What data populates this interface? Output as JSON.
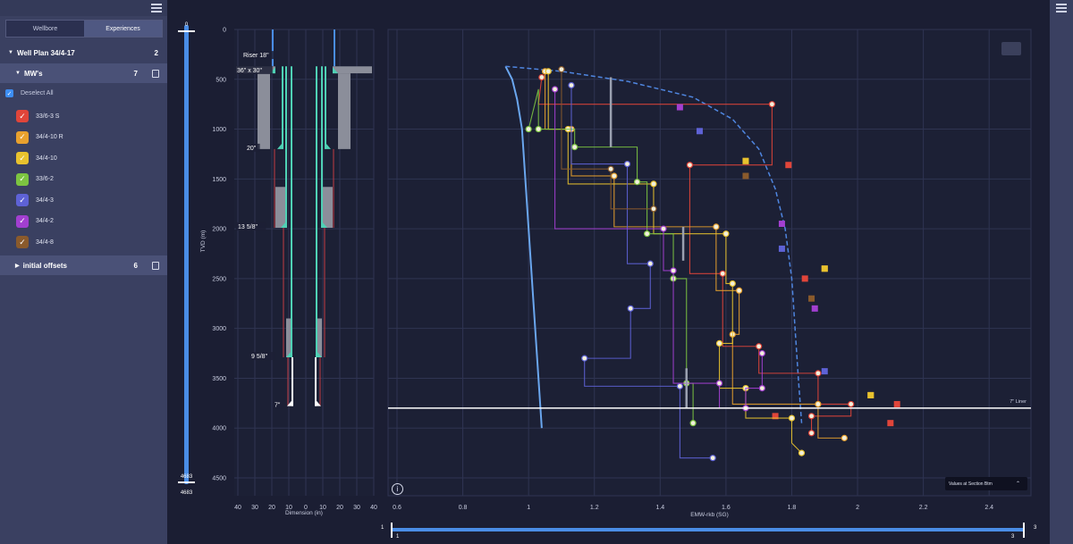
{
  "sidebar": {
    "tabs": [
      {
        "label": "Wellbore",
        "active": false
      },
      {
        "label": "Experiences",
        "active": true
      }
    ],
    "plan": {
      "title": "Well Plan 34/4-17",
      "count": "2"
    },
    "mws": {
      "title": "MW's",
      "count": "7"
    },
    "deselect_label": "Deselect All",
    "items": [
      {
        "label": "33/6-3 S",
        "color": "#e0453a",
        "icon": "check-icon"
      },
      {
        "label": "34/4-10 R",
        "color": "#e8a12e",
        "icon": "check-icon"
      },
      {
        "label": "34/4-10",
        "color": "#e8c22e",
        "icon": "check-icon"
      },
      {
        "label": "33/6-2",
        "color": "#7cc441",
        "icon": "check-icon"
      },
      {
        "label": "34/4-3",
        "color": "#5e62d6",
        "icon": "check-icon"
      },
      {
        "label": "34/4-2",
        "color": "#a23fd0",
        "icon": "check-icon"
      },
      {
        "label": "34/4-8",
        "color": "#8a5a2c",
        "icon": "check-icon"
      }
    ],
    "offsets": {
      "title": "initial offsets",
      "count": "6"
    }
  },
  "depth_scale": {
    "top": "0",
    "bottom": "4683",
    "bottom_repeat": "4683"
  },
  "section_button": "Values at Section Btm",
  "bottom_slider": {
    "left_top": "1",
    "left_bottom": "1",
    "right_top": "3",
    "right_bottom": "3"
  },
  "chart_data": [
    {
      "type": "diagram",
      "ylabel": "TVD (m)",
      "xlabel": "Dimension (in)",
      "yticks": [
        0,
        500,
        1000,
        1500,
        2000,
        2500,
        3000,
        3500,
        4000,
        4500
      ],
      "ylim": [
        0,
        4600
      ],
      "xticks": [
        "40",
        "30",
        "20",
        "10",
        "0",
        "10",
        "20",
        "30",
        "40"
      ],
      "casing_labels": [
        {
          "label": "Riser 18\"",
          "depth": 270
        },
        {
          "label": "36\" x 30\"",
          "depth": 420
        },
        {
          "label": "20\"",
          "depth": 1200
        },
        {
          "label": "13 5/8\"",
          "depth": 1990
        },
        {
          "label": "9 5/8\"",
          "depth": 3290
        },
        {
          "label": "7\"",
          "depth": 3780
        }
      ]
    },
    {
      "type": "line",
      "xlabel": "EMW-rkb (SG)",
      "xticks": [
        "0.6",
        "0.8",
        "1",
        "1.2",
        "1.4",
        "1.6",
        "1.8",
        "2",
        "2.2",
        "2.4"
      ],
      "xlim": [
        0.6,
        2.5
      ],
      "ylim": [
        0,
        4600
      ],
      "grid": true,
      "liner_label": "7\" Liner",
      "liner_depth": 3800,
      "pore_pressure": [
        [
          1.04,
          4000
        ],
        [
          1.03,
          3500
        ],
        [
          1.02,
          3000
        ],
        [
          1.01,
          2500
        ],
        [
          1.0,
          2000
        ],
        [
          0.99,
          1500
        ],
        [
          0.98,
          1000
        ],
        [
          0.965,
          700
        ],
        [
          0.95,
          500
        ],
        [
          0.93,
          370
        ]
      ],
      "fracture_gradient": [
        [
          0.93,
          370
        ],
        [
          1.1,
          420
        ],
        [
          1.3,
          520
        ],
        [
          1.5,
          680
        ],
        [
          1.62,
          900
        ],
        [
          1.7,
          1200
        ],
        [
          1.75,
          1600
        ],
        [
          1.78,
          2000
        ],
        [
          1.8,
          2500
        ],
        [
          1.81,
          3000
        ],
        [
          1.82,
          3500
        ],
        [
          1.83,
          3950
        ]
      ],
      "series": [
        {
          "name": "33/6-3 S",
          "color": "#e0453a",
          "points": [
            [
              1.04,
              480
            ],
            [
              1.03,
              750
            ],
            [
              1.74,
              750
            ],
            [
              1.74,
              1360
            ],
            [
              1.49,
              1360
            ],
            [
              1.49,
              2450
            ],
            [
              1.59,
              2450
            ],
            [
              1.59,
              3180
            ],
            [
              1.7,
              3180
            ],
            [
              1.7,
              3450
            ],
            [
              1.88,
              3450
            ],
            [
              1.88,
              3760
            ],
            [
              1.98,
              3760
            ],
            [
              1.98,
              3880
            ],
            [
              1.86,
              3880
            ],
            [
              1.86,
              4050
            ]
          ],
          "squares": [
            [
              1.79,
              1360
            ],
            [
              1.84,
              2500
            ],
            [
              1.75,
              3880
            ],
            [
              2.12,
              3760
            ],
            [
              2.1,
              3950
            ]
          ]
        },
        {
          "name": "34/4-10 R",
          "color": "#e8a12e",
          "points": [
            [
              1.05,
              420
            ],
            [
              1.05,
              1000
            ],
            [
              1.13,
              1000
            ],
            [
              1.13,
              1470
            ],
            [
              1.26,
              1470
            ],
            [
              1.26,
              1980
            ],
            [
              1.57,
              1980
            ],
            [
              1.57,
              2620
            ],
            [
              1.64,
              2620
            ],
            [
              1.64,
              3060
            ],
            [
              1.62,
              3060
            ],
            [
              1.62,
              3760
            ],
            [
              1.88,
              3760
            ],
            [
              1.88,
              4100
            ],
            [
              1.96,
              4100
            ]
          ],
          "squares": [
            [
              1.66,
              1320
            ],
            [
              1.9,
              2400
            ],
            [
              2.04,
              3670
            ]
          ]
        },
        {
          "name": "34/4-10",
          "color": "#e8c22e",
          "points": [
            [
              1.06,
              420
            ],
            [
              1.06,
              1000
            ],
            [
              1.12,
              1000
            ],
            [
              1.12,
              1550
            ],
            [
              1.38,
              1550
            ],
            [
              1.38,
              2050
            ],
            [
              1.6,
              2050
            ],
            [
              1.6,
              2550
            ],
            [
              1.62,
              2550
            ],
            [
              1.62,
              3150
            ],
            [
              1.58,
              3150
            ],
            [
              1.58,
              3600
            ],
            [
              1.66,
              3600
            ],
            [
              1.66,
              3900
            ],
            [
              1.8,
              3900
            ],
            [
              1.8,
              4150
            ],
            [
              1.83,
              4250
            ]
          ],
          "squares": [
            [
              1.66,
              1320
            ],
            [
              1.9,
              2400
            ],
            [
              2.04,
              3670
            ]
          ]
        },
        {
          "name": "33/6-2",
          "color": "#7cc441",
          "points": [
            [
              1.0,
              1000
            ],
            [
              1.03,
              600
            ],
            [
              1.03,
              1000
            ],
            [
              1.14,
              1000
            ],
            [
              1.14,
              1180
            ],
            [
              1.33,
              1180
            ],
            [
              1.33,
              1530
            ],
            [
              1.36,
              1530
            ],
            [
              1.36,
              2050
            ],
            [
              1.44,
              2050
            ],
            [
              1.44,
              2500
            ],
            [
              1.48,
              2500
            ],
            [
              1.48,
              3550
            ],
            [
              1.5,
              3550
            ],
            [
              1.5,
              3950
            ]
          ]
        },
        {
          "name": "34/4-3",
          "color": "#5e62d6",
          "points": [
            [
              1.13,
              560
            ],
            [
              1.13,
              1350
            ],
            [
              1.3,
              1350
            ],
            [
              1.3,
              2350
            ],
            [
              1.37,
              2350
            ],
            [
              1.37,
              2800
            ],
            [
              1.31,
              2800
            ],
            [
              1.31,
              3300
            ],
            [
              1.17,
              3300
            ],
            [
              1.17,
              3580
            ],
            [
              1.46,
              3580
            ],
            [
              1.46,
              4300
            ],
            [
              1.56,
              4300
            ]
          ],
          "squares": [
            [
              1.52,
              1020
            ],
            [
              1.77,
              2200
            ],
            [
              1.9,
              3430
            ]
          ]
        },
        {
          "name": "34/4-2",
          "color": "#a23fd0",
          "points": [
            [
              1.08,
              600
            ],
            [
              1.08,
              2000
            ],
            [
              1.41,
              2000
            ],
            [
              1.41,
              2420
            ],
            [
              1.44,
              2420
            ],
            [
              1.44,
              3550
            ],
            [
              1.58,
              3550
            ],
            [
              1.58,
              3800
            ],
            [
              1.66,
              3800
            ],
            [
              1.66,
              3600
            ],
            [
              1.71,
              3600
            ],
            [
              1.71,
              3250
            ]
          ],
          "squares": [
            [
              1.46,
              780
            ],
            [
              1.77,
              1950
            ],
            [
              1.87,
              2800
            ]
          ]
        },
        {
          "name": "34/4-8",
          "color": "#8a5a2c",
          "points": [
            [
              1.1,
              400
            ],
            [
              1.1,
              1400
            ],
            [
              1.25,
              1400
            ],
            [
              1.25,
              1800
            ],
            [
              1.38,
              1800
            ]
          ],
          "squares": [
            [
              1.66,
              1470
            ],
            [
              1.86,
              2700
            ]
          ]
        }
      ]
    }
  ]
}
